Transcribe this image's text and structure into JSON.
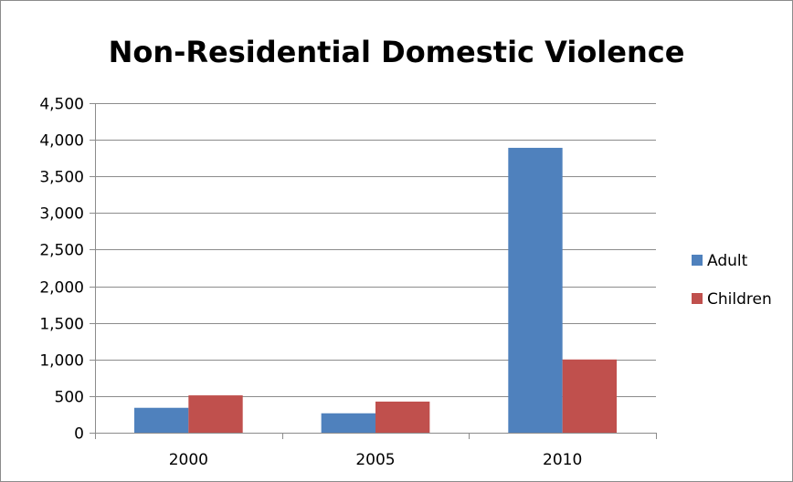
{
  "chart_data": {
    "type": "bar",
    "title": "Non-Residential Domestic Violence",
    "categories": [
      "2000",
      "2005",
      "2010"
    ],
    "series": [
      {
        "name": "Adult",
        "values": [
          340,
          265,
          3890
        ],
        "color": "#4f81bd"
      },
      {
        "name": "Children",
        "values": [
          510,
          425,
          1000
        ],
        "color": "#c0504d"
      }
    ],
    "ylim": [
      0,
      4500
    ],
    "yticks": [
      0,
      500,
      1000,
      1500,
      2000,
      2500,
      3000,
      3500,
      4000,
      4500
    ],
    "ytick_labels": [
      "0",
      "500",
      "1,000",
      "1,500",
      "2,000",
      "2,500",
      "3,000",
      "3,500",
      "4,000",
      "4,500"
    ],
    "grid": true,
    "legend_position": "right"
  }
}
